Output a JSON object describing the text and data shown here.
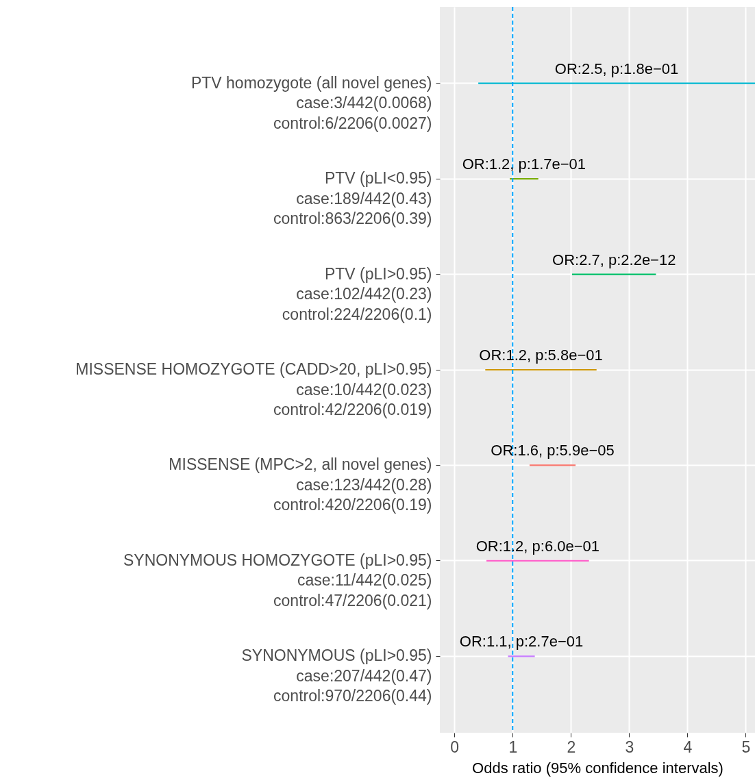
{
  "chart_data": {
    "type": "bar",
    "orientation": "horizontal",
    "grid": true,
    "xlabel": "Odds ratio (95% confidence intervals)",
    "categories": [
      "PTV homozygote (all novel genes)\ncase:3/442(0.0068)\ncontrol:6/2206(0.0027)",
      "PTV (pLI<0.95)\ncase:189/442(0.43)\ncontrol:863/2206(0.39)",
      "PTV (pLI>0.95)\ncase:102/442(0.23)\ncontrol:224/2206(0.1)",
      "MISSENSE HOMOZYGOTE (CADD>20, pLI>0.95)\ncase:10/442(0.023)\ncontrol:42/2206(0.019)",
      "MISSENSE (MPC>2, all novel genes)\ncase:123/442(0.28)\ncontrol:420/2206(0.19)",
      "SYNONYMOUS HOMOZYGOTE (pLI>0.95)\ncase:11/442(0.025)\ncontrol:47/2206(0.021)",
      "SYNONYMOUS (pLI>0.95)\ncase:207/442(0.47)\ncontrol:970/2206(0.44)"
    ],
    "base": [
      0.41,
      0.95,
      2.02,
      0.53,
      1.29,
      0.55,
      0.92
    ],
    "values": [
      4.75,
      0.49,
      1.44,
      1.91,
      0.79,
      1.76,
      0.46
    ],
    "colors": [
      "#00b6cf",
      "#7cae00",
      "#00be67",
      "#cd9600",
      "#f8766d",
      "#ff61cc",
      "#c77cff"
    ],
    "xlim": [
      -0.25,
      5.16
    ],
    "xticks": [
      0,
      1,
      2,
      3,
      4,
      5
    ],
    "ref_lines": [
      {
        "axis": "x",
        "value": 1,
        "color": "#00a5ff",
        "line_style": "dashed"
      }
    ],
    "annotations": [
      "OR:2.5, p:1.8e−01",
      "OR:1.2, p:1.7e−01",
      "OR:2.7, p:2.2e−12",
      "OR:1.2, p:5.8e−01",
      "OR:1.6, p:5.9e−05",
      "OR:1.2, p:6.0e−01",
      "OR:1.1, p:2.7e−01"
    ]
  }
}
